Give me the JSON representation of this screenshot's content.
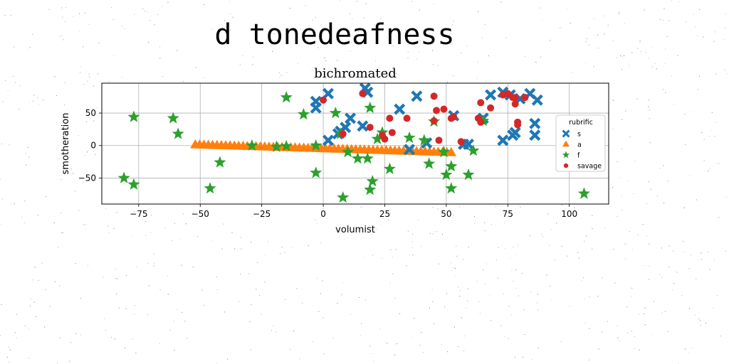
{
  "figure": {
    "suptitle": "d tonedeafness",
    "background": "#ffffff",
    "noise_color": "#444444"
  },
  "chart_data": {
    "type": "scatter",
    "title": "bichromated",
    "xlabel": "volumist",
    "ylabel": "smotheration",
    "xlim": [
      -90,
      116
    ],
    "ylim": [
      -90,
      96
    ],
    "xticks": [
      -75,
      -50,
      -25,
      0,
      25,
      50,
      75,
      100
    ],
    "yticks": [
      -50,
      0,
      50
    ],
    "xtick_labels": [
      "−75",
      "−50",
      "−25",
      "0",
      "25",
      "50",
      "75",
      "100"
    ],
    "ytick_labels": [
      "−50",
      "0",
      "50"
    ],
    "grid": true,
    "legend": {
      "title": "rubrific",
      "placement": "right"
    },
    "series": [
      {
        "name": "s",
        "marker": "X",
        "color": "#1f77b4",
        "points": [
          [
            -3,
            68
          ],
          [
            -3,
            58
          ],
          [
            2,
            8
          ],
          [
            2,
            80
          ],
          [
            6,
            18
          ],
          [
            7,
            22
          ],
          [
            9,
            28
          ],
          [
            11,
            42
          ],
          [
            16,
            30
          ],
          [
            17,
            88
          ],
          [
            18,
            82
          ],
          [
            31,
            56
          ],
          [
            35,
            -6
          ],
          [
            38,
            76
          ],
          [
            42,
            4
          ],
          [
            53,
            46
          ],
          [
            57,
            2
          ],
          [
            59,
            2
          ],
          [
            65,
            42
          ],
          [
            68,
            78
          ],
          [
            73,
            82
          ],
          [
            73,
            8
          ],
          [
            76,
            78
          ],
          [
            77,
            16
          ],
          [
            78,
            20
          ],
          [
            80,
            72
          ],
          [
            84,
            80
          ],
          [
            87,
            70
          ],
          [
            86,
            16
          ],
          [
            86,
            34
          ]
        ]
      },
      {
        "name": "a",
        "marker": "^",
        "color": "#ff7f0e",
        "line_from": [
          -52,
          1
        ],
        "line_to": [
          52,
          -11
        ],
        "count": 60
      },
      {
        "name": "f",
        "marker": "*",
        "color": "#2ca02c",
        "points": [
          [
            -81,
            -50
          ],
          [
            -77,
            44
          ],
          [
            -77,
            -60
          ],
          [
            -61,
            42
          ],
          [
            -59,
            18
          ],
          [
            -46,
            -66
          ],
          [
            -42,
            -26
          ],
          [
            -29,
            0
          ],
          [
            -19,
            -2
          ],
          [
            -15,
            74
          ],
          [
            -15,
            -1
          ],
          [
            -8,
            48
          ],
          [
            -3,
            -42
          ],
          [
            -3,
            0
          ],
          [
            5,
            50
          ],
          [
            7,
            18
          ],
          [
            8,
            -80
          ],
          [
            10,
            -10
          ],
          [
            14,
            -20
          ],
          [
            18,
            -20
          ],
          [
            19,
            -68
          ],
          [
            19,
            58
          ],
          [
            20,
            -55
          ],
          [
            22,
            10
          ],
          [
            24,
            20
          ],
          [
            27,
            -36
          ],
          [
            35,
            12
          ],
          [
            41,
            8
          ],
          [
            43,
            -28
          ],
          [
            45,
            37
          ],
          [
            49,
            -10
          ],
          [
            50,
            -45
          ],
          [
            52,
            -32
          ],
          [
            52,
            -66
          ],
          [
            59,
            -45
          ],
          [
            61,
            -8
          ],
          [
            65,
            38
          ],
          [
            106,
            -74
          ]
        ]
      },
      {
        "name": "savage",
        "marker": "o",
        "color": "#d62728",
        "points": [
          [
            0,
            70
          ],
          [
            8,
            18
          ],
          [
            16,
            80
          ],
          [
            19,
            28
          ],
          [
            24,
            16
          ],
          [
            25,
            10
          ],
          [
            27,
            42
          ],
          [
            28,
            20
          ],
          [
            34,
            42
          ],
          [
            45,
            76
          ],
          [
            45,
            38
          ],
          [
            46,
            54
          ],
          [
            47,
            8
          ],
          [
            49,
            56
          ],
          [
            52,
            42
          ],
          [
            53,
            44
          ],
          [
            56,
            6
          ],
          [
            63,
            42
          ],
          [
            64,
            36
          ],
          [
            64,
            66
          ],
          [
            68,
            58
          ],
          [
            73,
            78
          ],
          [
            75,
            80
          ],
          [
            77,
            74
          ],
          [
            78,
            64
          ],
          [
            78,
            74
          ],
          [
            79,
            36
          ],
          [
            79,
            32
          ],
          [
            82,
            74
          ]
        ]
      }
    ]
  }
}
